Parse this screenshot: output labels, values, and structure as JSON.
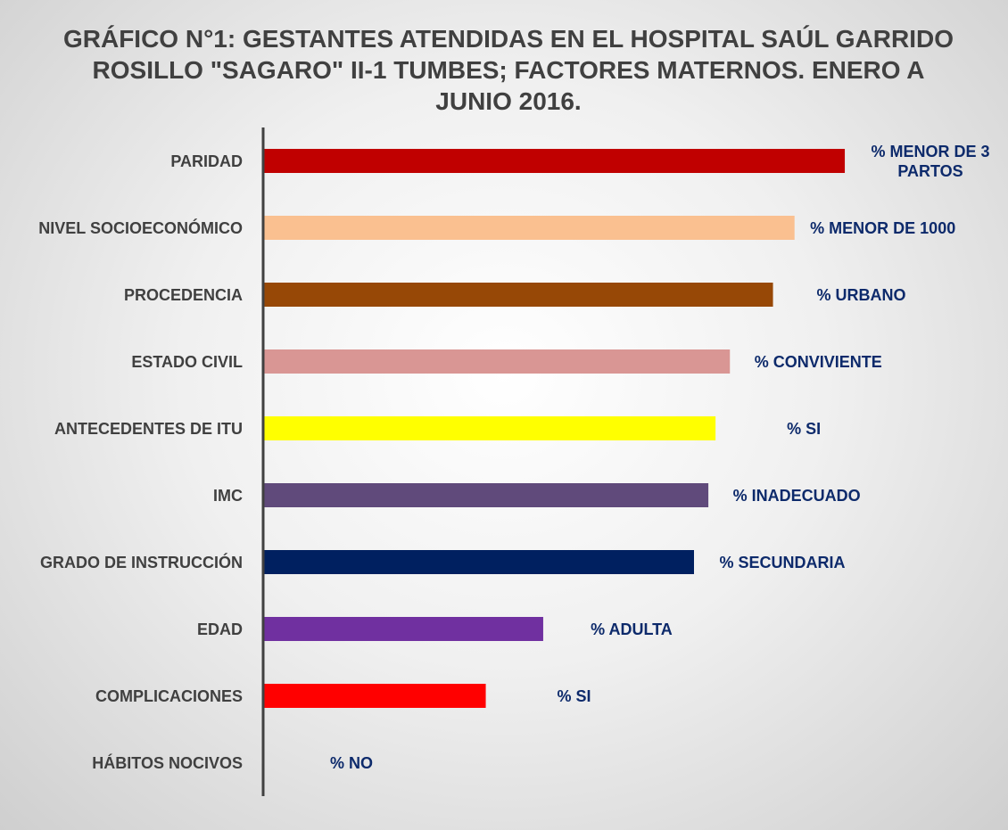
{
  "chart_data": {
    "type": "hbar",
    "title": "GRÁFICO N°1: GESTANTES ATENDIDAS EN EL HOSPITAL SAÚL GARRIDO ROSILLO \"SAGARO\" II-1 TUMBES; FACTORES MATERNOS. ENERO A JUNIO 2016.",
    "categories": [
      "PARIDAD",
      "NIVEL SOCIOECONÓMICO",
      "PROCEDENCIA",
      "ESTADO CIVIL",
      "ANTECEDENTES DE ITU",
      "IMC",
      "GRADO DE INSTRUCCIÓN",
      "EDAD",
      "COMPLICACIONES",
      "HÁBITOS NOCIVOS"
    ],
    "values": [
      81,
      74,
      71,
      65,
      63,
      62,
      60,
      39,
      31,
      0
    ],
    "bar_labels": [
      "% MENOR DE 3 PARTOS",
      "% MENOR DE 1000",
      "% URBANO",
      "% CONVIVIENTE",
      "% SI",
      "% INADECUADO",
      "% SECUNDARIA",
      "% ADULTA",
      "% SI",
      "% NO"
    ],
    "colors": [
      "#c00000",
      "#fac090",
      "#974806",
      "#d99694",
      "#ffff00",
      "#604a7b",
      "#002060",
      "#7030a0",
      "#ff0000",
      "#ff0000"
    ],
    "xlim": [
      0,
      100
    ]
  }
}
